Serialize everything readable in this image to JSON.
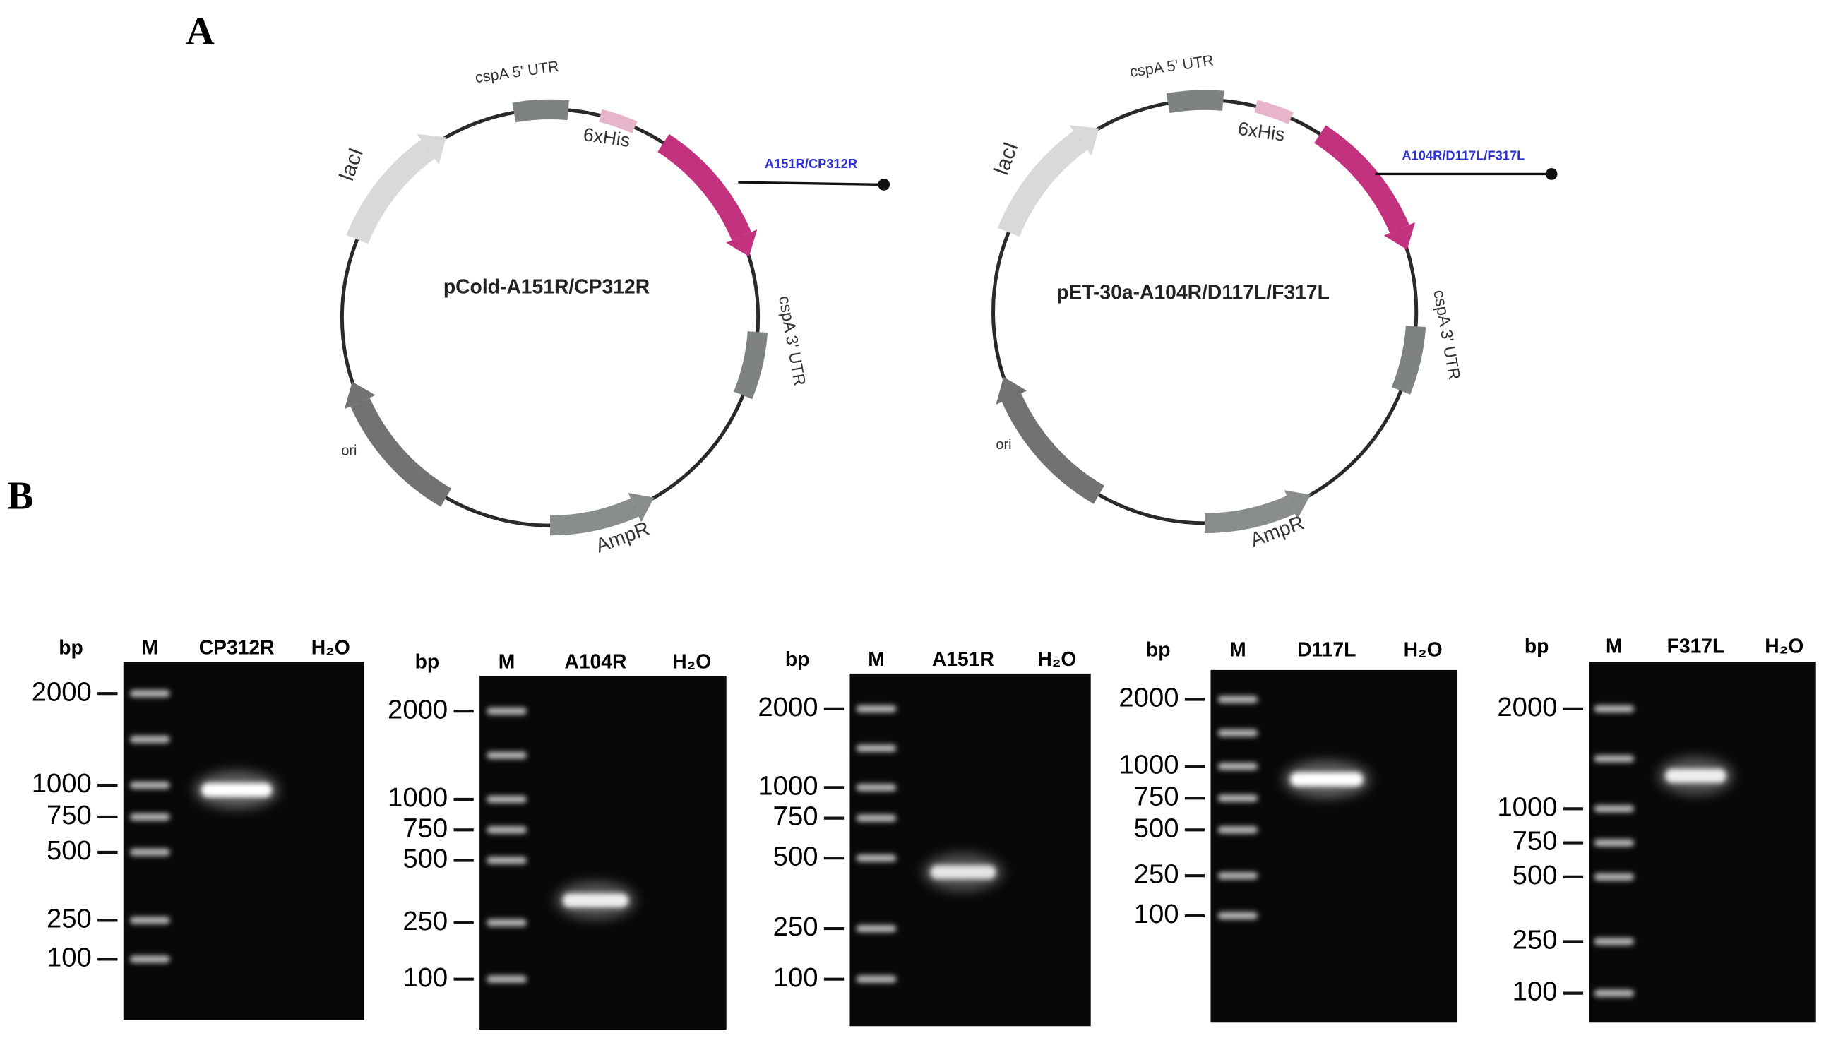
{
  "panels": {
    "a": "A",
    "b": "B"
  },
  "plasmids": [
    {
      "name": "pCold-A151R/CP312R",
      "features": [
        "cspA 5' UTR",
        "6xHis",
        "A151R/CP312R",
        "cspA 3' UTR",
        "AmpR",
        "ori",
        "lacI"
      ]
    },
    {
      "name": "pET-30a-A104R/D117L/F317L",
      "features": [
        "cspA 5' UTR",
        "6xHis",
        "A104R/D117L/F317L",
        "cspA 3' UTR",
        "AmpR",
        "ori",
        "lacI"
      ]
    }
  ],
  "gels": [
    {
      "unit": "bp",
      "lanes": [
        "M",
        "CP312R",
        "H₂O"
      ],
      "markers": [
        "2000",
        "1000",
        "750",
        "500",
        "250",
        "100"
      ]
    },
    {
      "unit": "bp",
      "lanes": [
        "M",
        "A104R",
        "H₂O"
      ],
      "markers": [
        "2000",
        "1000",
        "750",
        "500",
        "250",
        "100"
      ]
    },
    {
      "unit": "bp",
      "lanes": [
        "M",
        "A151R",
        "H₂O"
      ],
      "markers": [
        "2000",
        "1000",
        "750",
        "500",
        "250",
        "100"
      ]
    },
    {
      "unit": "bp",
      "lanes": [
        "M",
        "D117L",
        "H₂O"
      ],
      "markers": [
        "2000",
        "1000",
        "750",
        "500",
        "250",
        "100"
      ]
    },
    {
      "unit": "bp",
      "lanes": [
        "M",
        "F317L",
        "H₂O"
      ],
      "markers": [
        "2000",
        "1000",
        "750",
        "500",
        "250",
        "100"
      ]
    }
  ]
}
